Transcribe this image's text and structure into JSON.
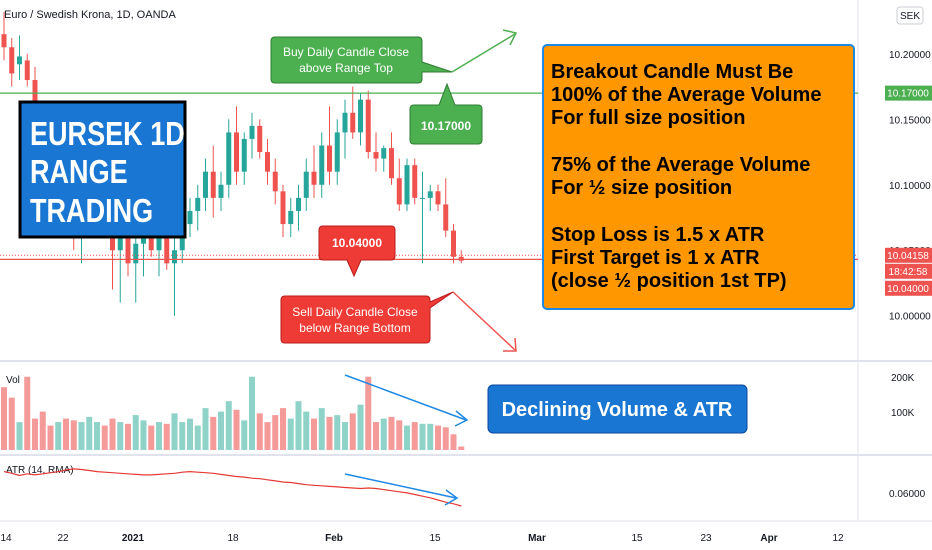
{
  "header": {
    "symbol_line": "Euro / Swedish Krona, 1D, OANDA",
    "currency_badge": "SEK"
  },
  "price_axis": {
    "ticks": [
      "10.20000",
      "10.15000",
      "10.10000",
      "10.05000",
      "10.00000"
    ],
    "tick_values": [
      10.2,
      10.15,
      10.1,
      10.05,
      10.0
    ],
    "range_top_label": "10.17000",
    "last_price_label": "10.04158",
    "countdown_label": "18:42:58",
    "range_bottom_label": "10.04000"
  },
  "volume_pane": {
    "label": "Vol",
    "ticks": [
      "200K",
      "100K"
    ]
  },
  "atr_pane": {
    "label": "ATR (14, RMA)",
    "tick": "0.06000"
  },
  "time_axis": {
    "labels": [
      "14",
      "22",
      "2021",
      "18",
      "Feb",
      "15",
      "Mar",
      "15",
      "23",
      "Apr",
      "12"
    ]
  },
  "annotations": {
    "title_box": [
      "EURSEK 1D",
      "RANGE",
      "TRADING"
    ],
    "buy_callout": [
      "Buy Daily Candle Close",
      "above Range Top"
    ],
    "sell_callout": [
      "Sell Daily Candle Close",
      "below Range Bottom"
    ],
    "top_level_tag": "10.17000",
    "bottom_level_tag": "10.04000",
    "info_box": [
      "Breakout Candle Must Be",
      "100% of the Average Volume",
      "For full size position",
      "",
      "75% of the Average Volume",
      "For ½ size position",
      "",
      "Stop Loss is 1.5 x ATR",
      "First Target is 1 x ATR",
      "(close ½ position 1st TP)"
    ],
    "volume_note": "Declining Volume & ATR"
  },
  "colors": {
    "up": "#26a69a",
    "up_volume": "#8fd3c8",
    "down": "#ef5350",
    "down_volume": "#f49a98",
    "range_top_line": "#4caf50",
    "range_bottom_line": "#ef5350",
    "atr_line": "#e53935",
    "callout_green": "#4caf50",
    "callout_red": "#ef3b36",
    "title_blue": "#1976d2",
    "info_orange": "#ff9800",
    "arrow_blue": "#1e88e5"
  },
  "chart_data": {
    "type": "candlestick",
    "title": "Euro / Swedish Krona, 1D, OANDA",
    "price_range": [
      9.97,
      10.235
    ],
    "levels": {
      "range_top": 10.17,
      "range_bottom": 10.04,
      "last": 10.04158
    },
    "candles": [
      {
        "o": 10.215,
        "h": 10.232,
        "l": 10.195,
        "c": 10.205
      },
      {
        "o": 10.205,
        "h": 10.212,
        "l": 10.175,
        "c": 10.185
      },
      {
        "o": 10.192,
        "h": 10.214,
        "l": 10.18,
        "c": 10.198
      },
      {
        "o": 10.195,
        "h": 10.2,
        "l": 10.175,
        "c": 10.18
      },
      {
        "o": 10.18,
        "h": 10.19,
        "l": 10.15,
        "c": 10.158
      },
      {
        "o": 10.15,
        "h": 10.16,
        "l": 10.12,
        "c": 10.128
      },
      {
        "o": 10.128,
        "h": 10.14,
        "l": 10.1,
        "c": 10.112
      },
      {
        "o": 10.108,
        "h": 10.13,
        "l": 10.09,
        "c": 10.122
      },
      {
        "o": 10.12,
        "h": 10.13,
        "l": 10.08,
        "c": 10.09
      },
      {
        "o": 10.09,
        "h": 10.1,
        "l": 10.05,
        "c": 10.06
      },
      {
        "o": 10.06,
        "h": 10.08,
        "l": 10.04,
        "c": 10.07
      },
      {
        "o": 10.07,
        "h": 10.1,
        "l": 10.06,
        "c": 10.085
      },
      {
        "o": 10.085,
        "h": 10.11,
        "l": 10.075,
        "c": 10.1
      },
      {
        "o": 10.1,
        "h": 10.12,
        "l": 10.06,
        "c": 10.07
      },
      {
        "o": 10.07,
        "h": 10.08,
        "l": 10.02,
        "c": 10.05
      },
      {
        "o": 10.05,
        "h": 10.07,
        "l": 10.01,
        "c": 10.06
      },
      {
        "o": 10.06,
        "h": 10.08,
        "l": 10.03,
        "c": 10.04
      },
      {
        "o": 10.04,
        "h": 10.06,
        "l": 10.01,
        "c": 10.055
      },
      {
        "o": 10.055,
        "h": 10.075,
        "l": 10.03,
        "c": 10.065
      },
      {
        "o": 10.065,
        "h": 10.085,
        "l": 10.045,
        "c": 10.05
      },
      {
        "o": 10.05,
        "h": 10.07,
        "l": 10.03,
        "c": 10.06
      },
      {
        "o": 10.06,
        "h": 10.075,
        "l": 10.035,
        "c": 10.04
      },
      {
        "o": 10.04,
        "h": 10.06,
        "l": 10.0,
        "c": 10.05
      },
      {
        "o": 10.05,
        "h": 10.075,
        "l": 10.04,
        "c": 10.07
      },
      {
        "o": 10.07,
        "h": 10.09,
        "l": 10.06,
        "c": 10.08
      },
      {
        "o": 10.08,
        "h": 10.1,
        "l": 10.065,
        "c": 10.09
      },
      {
        "o": 10.09,
        "h": 10.12,
        "l": 10.08,
        "c": 10.11
      },
      {
        "o": 10.11,
        "h": 10.13,
        "l": 10.075,
        "c": 10.09
      },
      {
        "o": 10.09,
        "h": 10.11,
        "l": 10.08,
        "c": 10.1
      },
      {
        "o": 10.1,
        "h": 10.15,
        "l": 10.09,
        "c": 10.14
      },
      {
        "o": 10.14,
        "h": 10.16,
        "l": 10.1,
        "c": 10.11
      },
      {
        "o": 10.11,
        "h": 10.14,
        "l": 10.1,
        "c": 10.135
      },
      {
        "o": 10.135,
        "h": 10.155,
        "l": 10.12,
        "c": 10.145
      },
      {
        "o": 10.145,
        "h": 10.15,
        "l": 10.12,
        "c": 10.125
      },
      {
        "o": 10.125,
        "h": 10.135,
        "l": 10.1,
        "c": 10.11
      },
      {
        "o": 10.11,
        "h": 10.12,
        "l": 10.085,
        "c": 10.095
      },
      {
        "o": 10.095,
        "h": 10.1,
        "l": 10.06,
        "c": 10.07
      },
      {
        "o": 10.07,
        "h": 10.09,
        "l": 10.06,
        "c": 10.08
      },
      {
        "o": 10.08,
        "h": 10.1,
        "l": 10.065,
        "c": 10.09
      },
      {
        "o": 10.09,
        "h": 10.12,
        "l": 10.08,
        "c": 10.11
      },
      {
        "o": 10.11,
        "h": 10.13,
        "l": 10.09,
        "c": 10.1
      },
      {
        "o": 10.1,
        "h": 10.14,
        "l": 10.09,
        "c": 10.13
      },
      {
        "o": 10.13,
        "h": 10.16,
        "l": 10.1,
        "c": 10.11
      },
      {
        "o": 10.11,
        "h": 10.15,
        "l": 10.1,
        "c": 10.14
      },
      {
        "o": 10.14,
        "h": 10.165,
        "l": 10.12,
        "c": 10.155
      },
      {
        "o": 10.155,
        "h": 10.175,
        "l": 10.135,
        "c": 10.14
      },
      {
        "o": 10.14,
        "h": 10.17,
        "l": 10.13,
        "c": 10.165
      },
      {
        "o": 10.165,
        "h": 10.172,
        "l": 10.12,
        "c": 10.125
      },
      {
        "o": 10.125,
        "h": 10.14,
        "l": 10.11,
        "c": 10.12
      },
      {
        "o": 10.12,
        "h": 10.13,
        "l": 10.11,
        "c": 10.128
      },
      {
        "o": 10.128,
        "h": 10.14,
        "l": 10.1,
        "c": 10.105
      },
      {
        "o": 10.105,
        "h": 10.12,
        "l": 10.08,
        "c": 10.085
      },
      {
        "o": 10.085,
        "h": 10.12,
        "l": 10.08,
        "c": 10.115
      },
      {
        "o": 10.115,
        "h": 10.12,
        "l": 10.085,
        "c": 10.09
      },
      {
        "o": 10.09,
        "h": 10.11,
        "l": 10.04,
        "c": 10.09
      },
      {
        "o": 10.09,
        "h": 10.1,
        "l": 10.08,
        "c": 10.095
      },
      {
        "o": 10.095,
        "h": 10.1,
        "l": 10.08,
        "c": 10.085
      },
      {
        "o": 10.085,
        "h": 10.105,
        "l": 10.06,
        "c": 10.065
      },
      {
        "o": 10.065,
        "h": 10.07,
        "l": 10.04,
        "c": 10.045
      },
      {
        "o": 10.045,
        "h": 10.05,
        "l": 10.04,
        "c": 10.042
      }
    ],
    "volume": [
      180000,
      150000,
      80000,
      210000,
      90000,
      110000,
      70000,
      80000,
      90000,
      85000,
      80000,
      95000,
      80000,
      70000,
      90000,
      80000,
      75000,
      100000,
      85000,
      70000,
      80000,
      75000,
      105000,
      80000,
      90000,
      70000,
      120000,
      95000,
      110000,
      140000,
      115000,
      85000,
      210000,
      105000,
      80000,
      100000,
      120000,
      90000,
      140000,
      110000,
      90000,
      120000,
      95000,
      100000,
      80000,
      105000,
      130000,
      210000,
      80000,
      90000,
      95000,
      85000,
      70000,
      80000,
      75000,
      75000,
      70000,
      65000,
      45000,
      10000
    ],
    "atr": [
      0.0655,
      0.0652,
      0.0648,
      0.0651,
      0.0649,
      0.0651,
      0.0653,
      0.0655,
      0.0658,
      0.066,
      0.0659,
      0.0657,
      0.0655,
      0.0654,
      0.0653,
      0.0652,
      0.0651,
      0.065,
      0.0649,
      0.0649,
      0.065,
      0.0651,
      0.0652,
      0.0654,
      0.0655,
      0.0654,
      0.0653,
      0.0652,
      0.065,
      0.0648,
      0.0646,
      0.0645,
      0.0643,
      0.0642,
      0.064,
      0.0638,
      0.0636,
      0.0635,
      0.0633,
      0.0631,
      0.063,
      0.0629,
      0.0628,
      0.0627,
      0.0626,
      0.0625,
      0.0624,
      0.0625,
      0.0624,
      0.0622,
      0.062,
      0.0618,
      0.0616,
      0.0613,
      0.061,
      0.0607,
      0.0603,
      0.0599,
      0.0596,
      0.0592
    ],
    "atr_range": [
      0.057,
      0.068
    ]
  }
}
